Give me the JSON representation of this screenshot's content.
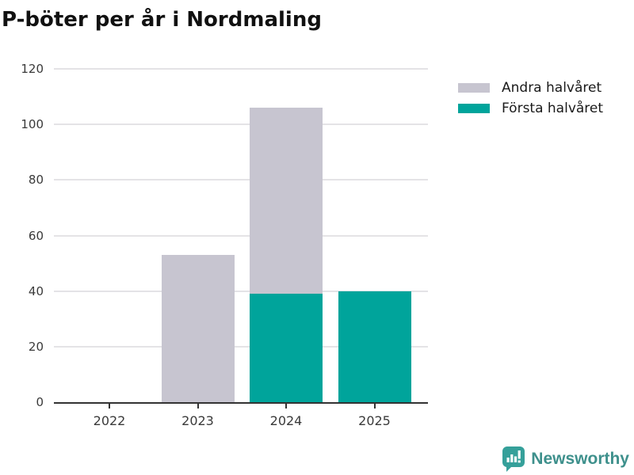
{
  "header": {
    "title": "P-böter per år i Nordmaling"
  },
  "legend": {
    "items": [
      {
        "label": "Andra halvåret",
        "color": "#c7c5d0"
      },
      {
        "label": "Första halvåret",
        "color": "#00a49b"
      }
    ]
  },
  "chart_data": {
    "type": "bar",
    "stacked": true,
    "title": "P-böter per år i Nordmaling",
    "categories": [
      "2022",
      "2023",
      "2024",
      "2025"
    ],
    "series": [
      {
        "name": "Första halvåret",
        "color": "#00a49b",
        "values": [
          0,
          0,
          39,
          40
        ]
      },
      {
        "name": "Andra halvåret",
        "color": "#c7c5d0",
        "values": [
          0,
          53,
          67,
          0
        ]
      }
    ],
    "totals": [
      0,
      53,
      106,
      40
    ],
    "xlabel": "",
    "ylabel": "",
    "ylim": [
      0,
      120
    ],
    "yticks": [
      0,
      20,
      40,
      60,
      80,
      100,
      120
    ],
    "grid": "horizontal",
    "legend_position": "top-right"
  },
  "attribution": {
    "brand": "Newsworthy",
    "icon_color": "#35a09a",
    "text_color": "#3e908c"
  },
  "colors": {
    "background": "#ffffff",
    "axis": "#333333",
    "grid": "#e4e3e6",
    "tick_label": "#3a3a3a",
    "title": "#111111"
  }
}
